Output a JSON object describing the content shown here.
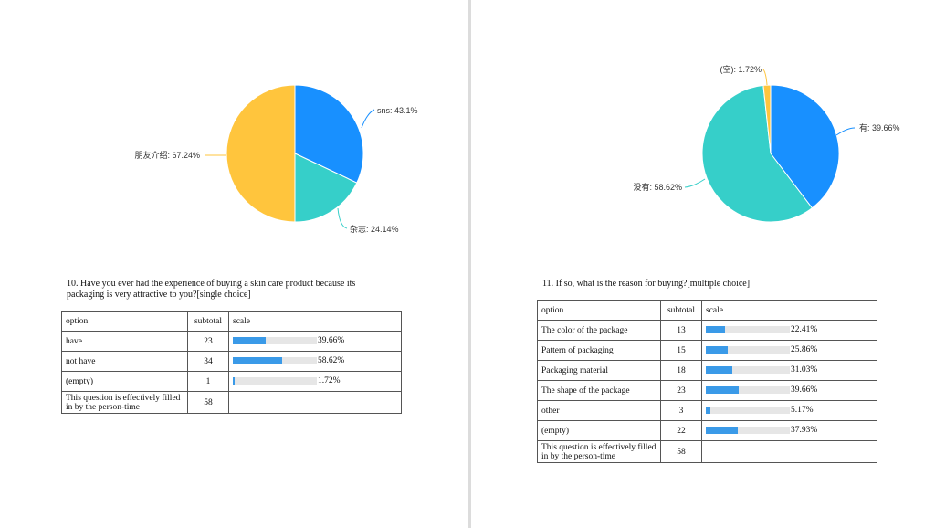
{
  "left": {
    "pie": {
      "slices": [
        {
          "label": "sns: 43.1%",
          "value": 43.1,
          "color": "#1890ff"
        },
        {
          "label": "杂志: 24.14%",
          "value": 24.14,
          "color": "#36cfc9"
        },
        {
          "label": "朋友介绍: 67.24%",
          "value": 67.24,
          "color": "#ffc53d"
        }
      ]
    },
    "question": {
      "title": "10. Have you ever had the experience of buying a skin care product because its packaging is very attractive to you?[single choice]",
      "headers": {
        "option": "option",
        "subtotal": "subtotal",
        "scale": "scale"
      },
      "rows": [
        {
          "option": "have",
          "subtotal": "23",
          "pct": 39.66,
          "pct_label": "39.66%"
        },
        {
          "option": "not have",
          "subtotal": "34",
          "pct": 58.62,
          "pct_label": "58.62%"
        },
        {
          "option": "(empty)",
          "subtotal": "1",
          "pct": 1.72,
          "pct_label": "1.72%"
        }
      ],
      "total": {
        "label": "This question is effectively filled in by the person-time",
        "value": "58"
      }
    }
  },
  "right": {
    "pie": {
      "slices": [
        {
          "label": "有: 39.66%",
          "value": 39.66,
          "color": "#1890ff"
        },
        {
          "label": "没有: 58.62%",
          "value": 58.62,
          "color": "#36cfc9"
        },
        {
          "label": "(空): 1.72%",
          "value": 1.72,
          "color": "#ffc53d"
        }
      ]
    },
    "question": {
      "title": "11. If so, what is the reason for buying?[multiple choice]",
      "headers": {
        "option": "option",
        "subtotal": "subtotal",
        "scale": "scale"
      },
      "rows": [
        {
          "option": "The color of the package",
          "subtotal": "13",
          "pct": 22.41,
          "pct_label": "22.41%"
        },
        {
          "option": "Pattern of packaging",
          "subtotal": "15",
          "pct": 25.86,
          "pct_label": "25.86%"
        },
        {
          "option": "Packaging material",
          "subtotal": "18",
          "pct": 31.03,
          "pct_label": "31.03%"
        },
        {
          "option": "The shape of the package",
          "subtotal": "23",
          "pct": 39.66,
          "pct_label": "39.66%"
        },
        {
          "option": "other",
          "subtotal": "3",
          "pct": 5.17,
          "pct_label": "5.17%"
        },
        {
          "option": "(empty)",
          "subtotal": "22",
          "pct": 37.93,
          "pct_label": "37.93%"
        }
      ],
      "total": {
        "label": "This question is effectively filled in by the person-time",
        "value": "58"
      }
    }
  }
}
